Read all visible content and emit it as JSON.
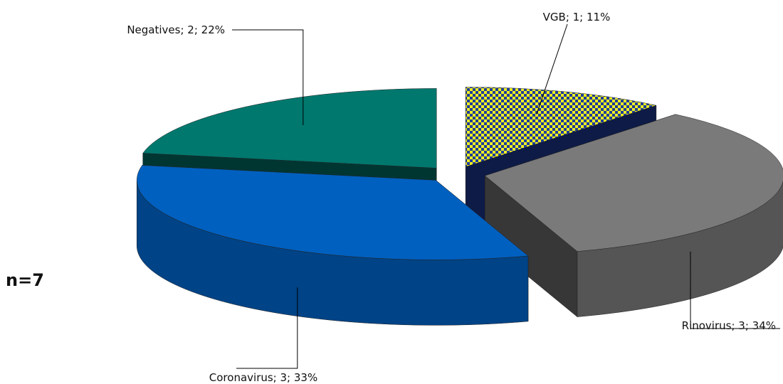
{
  "chart_data": {
    "type": "pie",
    "categories": [
      "VGB",
      "Rinovirus",
      "Coronavirus",
      "Negatives"
    ],
    "values": [
      11,
      34,
      33,
      22
    ],
    "value_labels": [
      "VGB; 1; 11%",
      "Rinovirus; 3; 34%",
      "Coronavirus; 3; 33%",
      "Negatives; 2; 22%"
    ],
    "colors": [
      "#1f3c9c",
      "#7a7a7a",
      "#0060c0",
      "#00786e"
    ],
    "pattern_colors": [
      "#f0f020",
      null,
      null,
      null
    ],
    "annotation": "n=7"
  }
}
